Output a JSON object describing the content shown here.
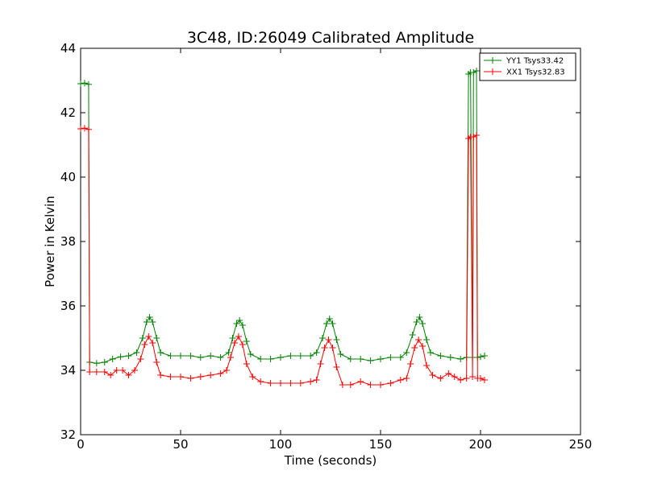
{
  "chart_data": {
    "type": "line",
    "title": "3C48, ID:26049 Calibrated Amplitude",
    "xlabel": "Time (seconds)",
    "ylabel": "Power in Kelvin",
    "xlim": [
      0,
      250
    ],
    "ylim": [
      32,
      44
    ],
    "x_ticks": [
      "0",
      "50",
      "100",
      "150",
      "200",
      "250"
    ],
    "y_ticks": [
      "32",
      "34",
      "36",
      "38",
      "40",
      "42",
      "44"
    ],
    "grid": false,
    "legend_position": "top-right",
    "marker": "+",
    "series": [
      {
        "name": "YY1 Tsys33.42",
        "color": "#008000",
        "points": [
          [
            0,
            42.9
          ],
          [
            2,
            42.92
          ],
          [
            4,
            42.88
          ],
          [
            4.5,
            34.25
          ],
          [
            8,
            34.22
          ],
          [
            12,
            34.25
          ],
          [
            16,
            34.35
          ],
          [
            20,
            34.42
          ],
          [
            24,
            34.45
          ],
          [
            28,
            34.55
          ],
          [
            31,
            35.0
          ],
          [
            33,
            35.5
          ],
          [
            34.5,
            35.65
          ],
          [
            36,
            35.5
          ],
          [
            38,
            35.0
          ],
          [
            40,
            34.55
          ],
          [
            45,
            34.45
          ],
          [
            50,
            34.45
          ],
          [
            55,
            34.45
          ],
          [
            60,
            34.4
          ],
          [
            65,
            34.45
          ],
          [
            70,
            34.4
          ],
          [
            74,
            34.55
          ],
          [
            76,
            35.0
          ],
          [
            78,
            35.45
          ],
          [
            79.5,
            35.55
          ],
          [
            81,
            35.4
          ],
          [
            83,
            34.9
          ],
          [
            85,
            34.5
          ],
          [
            90,
            34.35
          ],
          [
            95,
            34.35
          ],
          [
            100,
            34.4
          ],
          [
            105,
            34.45
          ],
          [
            110,
            34.45
          ],
          [
            115,
            34.45
          ],
          [
            118,
            34.55
          ],
          [
            121,
            35.0
          ],
          [
            123,
            35.45
          ],
          [
            124.5,
            35.6
          ],
          [
            126,
            35.45
          ],
          [
            128,
            34.95
          ],
          [
            130,
            34.5
          ],
          [
            135,
            34.35
          ],
          [
            140,
            34.35
          ],
          [
            145,
            34.3
          ],
          [
            150,
            34.35
          ],
          [
            155,
            34.4
          ],
          [
            160,
            34.4
          ],
          [
            163,
            34.55
          ],
          [
            166,
            35.1
          ],
          [
            168,
            35.5
          ],
          [
            169.5,
            35.65
          ],
          [
            171,
            35.45
          ],
          [
            173,
            34.95
          ],
          [
            175,
            34.55
          ],
          [
            180,
            34.45
          ],
          [
            185,
            34.4
          ],
          [
            190,
            34.35
          ],
          [
            193,
            34.4
          ],
          [
            194,
            43.2
          ],
          [
            195,
            43.25
          ],
          [
            196,
            34.4
          ],
          [
            196.5,
            43.25
          ],
          [
            198,
            43.3
          ],
          [
            198.5,
            34.4
          ],
          [
            200,
            34.42
          ],
          [
            202,
            34.45
          ]
        ]
      },
      {
        "name": "XX1 Tsys32.83",
        "color": "#ff0000",
        "points": [
          [
            0,
            41.5
          ],
          [
            2,
            41.52
          ],
          [
            4,
            41.48
          ],
          [
            4.5,
            33.95
          ],
          [
            8,
            33.95
          ],
          [
            12,
            33.95
          ],
          [
            15,
            33.85
          ],
          [
            18,
            34.0
          ],
          [
            21,
            34.0
          ],
          [
            24,
            33.85
          ],
          [
            27,
            34.0
          ],
          [
            30,
            34.35
          ],
          [
            32,
            34.8
          ],
          [
            34,
            35.05
          ],
          [
            36,
            34.85
          ],
          [
            38,
            34.25
          ],
          [
            40,
            33.85
          ],
          [
            45,
            33.8
          ],
          [
            50,
            33.8
          ],
          [
            55,
            33.75
          ],
          [
            60,
            33.8
          ],
          [
            65,
            33.85
          ],
          [
            70,
            33.9
          ],
          [
            73,
            34.0
          ],
          [
            75,
            34.4
          ],
          [
            77,
            34.85
          ],
          [
            79,
            35.05
          ],
          [
            81,
            34.8
          ],
          [
            83,
            34.2
          ],
          [
            86,
            33.8
          ],
          [
            90,
            33.65
          ],
          [
            95,
            33.6
          ],
          [
            100,
            33.6
          ],
          [
            105,
            33.6
          ],
          [
            110,
            33.6
          ],
          [
            115,
            33.65
          ],
          [
            118,
            33.7
          ],
          [
            120,
            34.2
          ],
          [
            122,
            34.7
          ],
          [
            124,
            34.95
          ],
          [
            126,
            34.7
          ],
          [
            128,
            34.1
          ],
          [
            131,
            33.55
          ],
          [
            135,
            33.55
          ],
          [
            140,
            33.65
          ],
          [
            145,
            33.55
          ],
          [
            150,
            33.55
          ],
          [
            155,
            33.6
          ],
          [
            160,
            33.7
          ],
          [
            163,
            33.75
          ],
          [
            165,
            34.2
          ],
          [
            167,
            34.7
          ],
          [
            169,
            34.95
          ],
          [
            171,
            34.75
          ],
          [
            173,
            34.15
          ],
          [
            176,
            33.85
          ],
          [
            180,
            33.75
          ],
          [
            184,
            33.9
          ],
          [
            187,
            33.8
          ],
          [
            190,
            33.7
          ],
          [
            193,
            33.75
          ],
          [
            194,
            41.2
          ],
          [
            195,
            41.25
          ],
          [
            196,
            33.8
          ],
          [
            196.5,
            41.25
          ],
          [
            198,
            41.3
          ],
          [
            198.5,
            33.75
          ],
          [
            200,
            33.75
          ],
          [
            202,
            33.7
          ]
        ]
      }
    ]
  }
}
